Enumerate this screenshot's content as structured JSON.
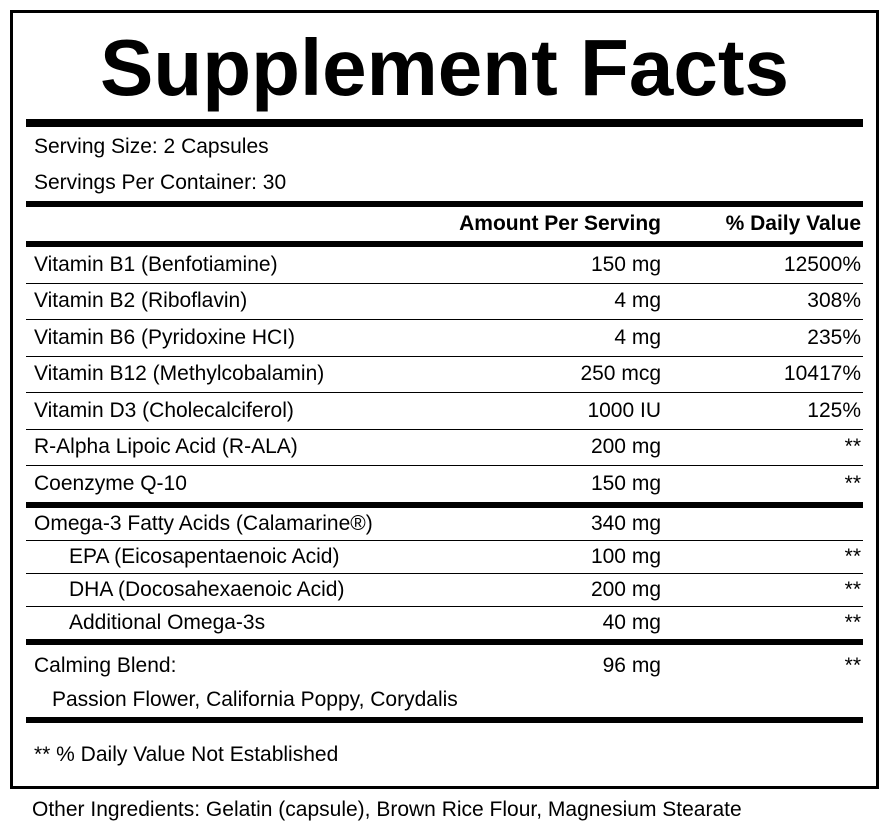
{
  "title": "Supplement Facts",
  "serving_size": "Serving Size: 2 Capsules",
  "servings_per_container": "Servings Per Container: 30",
  "header": {
    "amount": "Amount Per Serving",
    "dv": "% Daily Value"
  },
  "group1": [
    {
      "name": "Vitamin B1 (Benfotiamine)",
      "amount": "150 mg",
      "dv": "12500%"
    },
    {
      "name": "Vitamin B2 (Riboflavin)",
      "amount": "4 mg",
      "dv": "308%"
    },
    {
      "name": "Vitamin B6 (Pyridoxine HCI)",
      "amount": "4 mg",
      "dv": "235%"
    },
    {
      "name": "Vitamin B12 (Methylcobalamin)",
      "amount": "250 mcg",
      "dv": "10417%"
    },
    {
      "name": "Vitamin D3 (Cholecalciferol)",
      "amount": "1000 IU",
      "dv": "125%"
    },
    {
      "name": "R-Alpha Lipoic Acid (R-ALA)",
      "amount": "200 mg",
      "dv": "**"
    },
    {
      "name": "Coenzyme Q-10",
      "amount": "150 mg",
      "dv": "**"
    }
  ],
  "omega": {
    "name": "Omega-3 Fatty Acids (Calamarine®)",
    "amount": "340 mg",
    "dv": ""
  },
  "omega_sub": [
    {
      "name": "EPA (Eicosapentaenoic Acid)",
      "amount": "100 mg",
      "dv": "**"
    },
    {
      "name": "DHA (Docosahexaenoic Acid)",
      "amount": "200 mg",
      "dv": "**"
    },
    {
      "name": "Additional Omega-3s",
      "amount": "40 mg",
      "dv": "**"
    }
  ],
  "blend": {
    "name": "Calming Blend:",
    "amount": "96 mg",
    "dv": "**",
    "ingredients": "Passion Flower, California Poppy, Corydalis"
  },
  "footnote": "** % Daily Value Not Established",
  "other_ingredients": "Other Ingredients: Gelatin (capsule), Brown Rice Flour, Magnesium Stearate"
}
